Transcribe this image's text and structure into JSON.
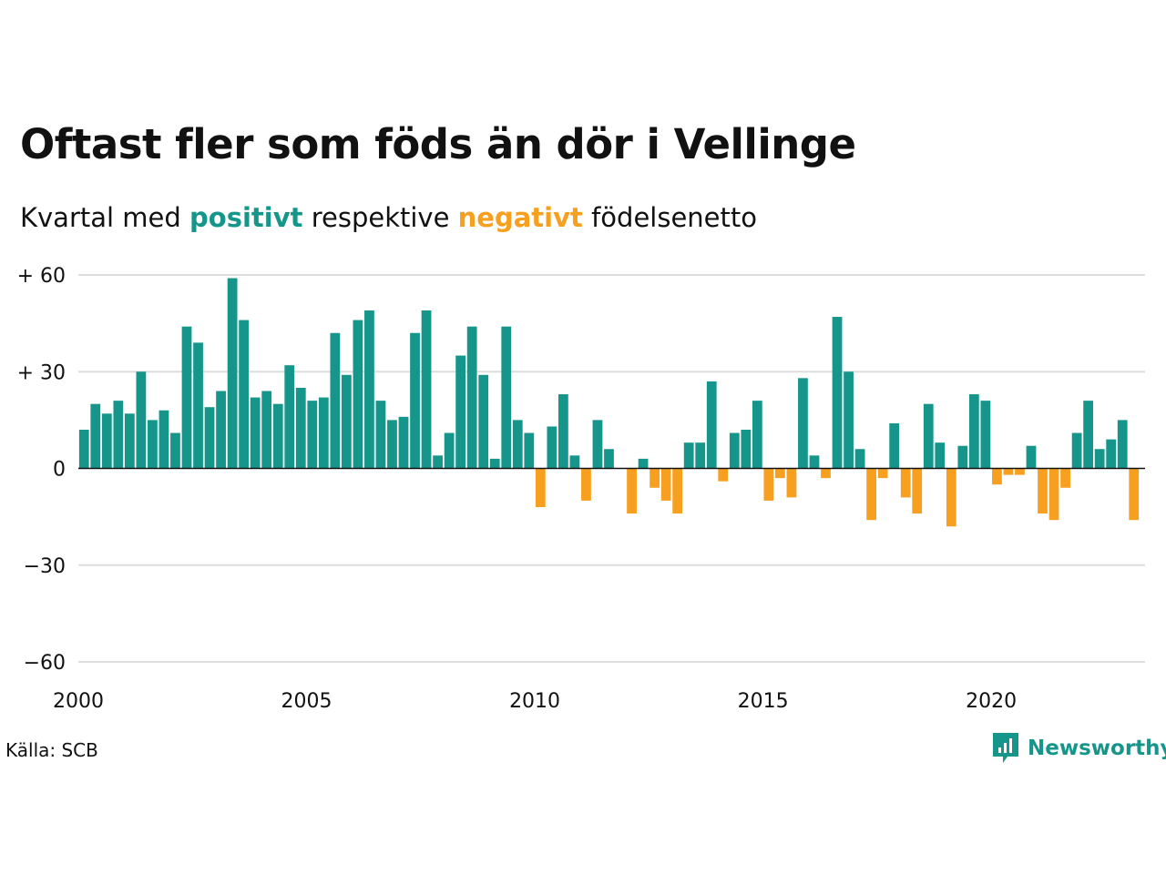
{
  "header": {
    "title": "Oftast fler som föds än dör i Vellinge",
    "subtitle_parts": [
      "Kvartal med",
      "positivt",
      "respektive",
      "negativt",
      "födelsenetto"
    ]
  },
  "footer": {
    "source": "Källa: SCB",
    "brand": "Newsworthy",
    "brand_logo_icon": "newsworthy-logo-icon"
  },
  "colors": {
    "positive": "#16968a",
    "negative": "#f7a01f",
    "grid": "#dddddd",
    "zero_line": "#111111"
  },
  "chart_data": {
    "type": "bar",
    "x_start": "2000-Q1",
    "frequency": "quarterly",
    "values": [
      12,
      20,
      17,
      21,
      17,
      30,
      15,
      18,
      11,
      44,
      39,
      19,
      24,
      59,
      46,
      22,
      24,
      20,
      32,
      25,
      21,
      22,
      42,
      29,
      46,
      49,
      21,
      15,
      16,
      42,
      49,
      4,
      11,
      35,
      44,
      29,
      3,
      44,
      15,
      11,
      -12,
      13,
      23,
      4,
      -10,
      15,
      6,
      0,
      -14,
      3,
      -6,
      -10,
      -14,
      8,
      8,
      27,
      -4,
      11,
      12,
      21,
      -10,
      -3,
      -9,
      28,
      4,
      -3,
      47,
      30,
      6,
      -16,
      -3,
      14,
      -9,
      -14,
      20,
      8,
      -18,
      7,
      23,
      21,
      -5,
      -2,
      -2,
      7,
      -14,
      -16,
      -6,
      11,
      21,
      6,
      9,
      15,
      -16
    ],
    "ylim": [
      -60,
      60
    ],
    "yticks": [
      60,
      30,
      0,
      -30,
      -60
    ],
    "ytick_labels": [
      "+ 60",
      "+ 30",
      "0",
      "−30",
      "−60"
    ],
    "xlim": [
      2000,
      2023.25
    ],
    "xticks": [
      2000,
      2005,
      2010,
      2015,
      2020
    ],
    "xtick_labels": [
      "2000",
      "2005",
      "2010",
      "2015",
      "2020"
    ],
    "grid": true,
    "legend": "none"
  }
}
